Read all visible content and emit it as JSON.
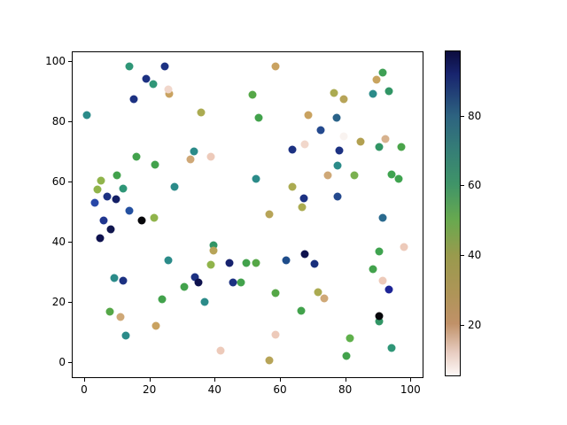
{
  "chart_data": {
    "type": "scatter",
    "title": "",
    "xlabel": "",
    "ylabel": "",
    "grid": false,
    "xlim": [
      -3.8,
      104.0
    ],
    "ylim": [
      -5.3,
      103.2
    ],
    "xticks": [
      0,
      20,
      40,
      60,
      80,
      100
    ],
    "yticks": [
      0,
      20,
      40,
      60,
      80,
      100
    ],
    "marker_diameter_px": 9,
    "point_format": [
      "x",
      "y",
      "color"
    ],
    "points": [
      [
        13.8,
        98.4,
        "#2f9677"
      ],
      [
        24.6,
        98.6,
        "#1c3182"
      ],
      [
        18.8,
        94.4,
        "#1c3182"
      ],
      [
        20.9,
        92.7,
        "#2f9677"
      ],
      [
        26.0,
        89.3,
        "#c9a260"
      ],
      [
        25.8,
        90.7,
        "#f1d7cb"
      ],
      [
        15.0,
        87.4,
        "#1c3182"
      ],
      [
        0.7,
        82.3,
        "#2b8b89"
      ],
      [
        15.8,
        68.4,
        "#42a24c"
      ],
      [
        58.6,
        98.4,
        "#c9a260"
      ],
      [
        51.7,
        89.1,
        "#55a747"
      ],
      [
        35.7,
        83.2,
        "#abab51"
      ],
      [
        53.6,
        81.4,
        "#42a24c"
      ],
      [
        68.7,
        82.1,
        "#c9a260"
      ],
      [
        33.7,
        70.1,
        "#2b8b89"
      ],
      [
        63.8,
        70.8,
        "#1c3182"
      ],
      [
        32.6,
        67.4,
        "#cfa877"
      ],
      [
        38.9,
        68.4,
        "#edcaba"
      ],
      [
        91.8,
        96.3,
        "#3fa055"
      ],
      [
        89.7,
        94.1,
        "#c9a45f"
      ],
      [
        88.7,
        89.4,
        "#2b8b89"
      ],
      [
        93.6,
        90.2,
        "#319565"
      ],
      [
        76.7,
        89.6,
        "#abab51"
      ],
      [
        79.6,
        87.4,
        "#b7a458"
      ],
      [
        77.6,
        81.4,
        "#2a6389"
      ],
      [
        72.7,
        77.1,
        "#24498e"
      ],
      [
        79.6,
        75.2,
        "#f9f3f0"
      ],
      [
        67.7,
        72.4,
        "#f1d7cb"
      ],
      [
        84.9,
        73.2,
        "#b2a050"
      ],
      [
        92.5,
        74.2,
        "#d7b28e"
      ],
      [
        90.5,
        71.6,
        "#319565"
      ],
      [
        97.5,
        71.6,
        "#4aa44a"
      ],
      [
        78.3,
        70.3,
        "#1c3182"
      ],
      [
        21.7,
        65.6,
        "#42a24c"
      ],
      [
        9.8,
        62.0,
        "#42a24c"
      ],
      [
        5.0,
        60.2,
        "#90b44b"
      ],
      [
        3.9,
        57.4,
        "#90b44b"
      ],
      [
        11.8,
        57.6,
        "#2f9677"
      ],
      [
        6.8,
        55.1,
        "#1c3182"
      ],
      [
        9.7,
        54.1,
        "#141f66"
      ],
      [
        3.0,
        52.9,
        "#2847a8"
      ],
      [
        27.6,
        58.2,
        "#2b8b89"
      ],
      [
        13.6,
        50.2,
        "#2450a0"
      ],
      [
        17.6,
        47.1,
        "#06060a"
      ],
      [
        21.4,
        47.9,
        "#90b44b"
      ],
      [
        5.7,
        47.1,
        "#20368f"
      ],
      [
        8.0,
        44.1,
        "#10164e"
      ],
      [
        4.7,
        41.2,
        "#0e124e"
      ],
      [
        25.6,
        33.6,
        "#2b8b89"
      ],
      [
        52.7,
        61.0,
        "#2b8b89"
      ],
      [
        63.8,
        58.3,
        "#abab51"
      ],
      [
        67.5,
        54.5,
        "#1c3182"
      ],
      [
        66.8,
        51.4,
        "#abab51"
      ],
      [
        56.8,
        49.2,
        "#b7a458"
      ],
      [
        39.5,
        38.7,
        "#319565"
      ],
      [
        39.7,
        37.1,
        "#b7a458"
      ],
      [
        38.8,
        32.2,
        "#90b44b"
      ],
      [
        44.6,
        32.9,
        "#16226e"
      ],
      [
        49.7,
        32.9,
        "#42a24c"
      ],
      [
        52.6,
        32.9,
        "#55a747"
      ],
      [
        61.9,
        33.8,
        "#1e4c8a"
      ],
      [
        67.6,
        35.9,
        "#0e124e"
      ],
      [
        70.6,
        32.6,
        "#182f7c"
      ],
      [
        77.8,
        65.4,
        "#2b8b89"
      ],
      [
        74.9,
        62.0,
        "#cfa877"
      ],
      [
        82.9,
        62.0,
        "#7ab04f"
      ],
      [
        94.5,
        62.4,
        "#3fa34f"
      ],
      [
        96.5,
        61.0,
        "#3fa34f"
      ],
      [
        77.8,
        55.1,
        "#24498e"
      ],
      [
        91.8,
        47.9,
        "#2a6a8e"
      ],
      [
        90.7,
        36.8,
        "#3fa34f"
      ],
      [
        98.4,
        38.1,
        "#edcaba"
      ],
      [
        88.7,
        30.9,
        "#42a24c"
      ],
      [
        8.9,
        27.9,
        "#2b8b89"
      ],
      [
        11.8,
        26.9,
        "#1c3182"
      ],
      [
        23.7,
        20.8,
        "#42a24c"
      ],
      [
        7.7,
        16.7,
        "#55a747"
      ],
      [
        10.9,
        14.9,
        "#cfa877"
      ],
      [
        21.9,
        11.8,
        "#c9a260"
      ],
      [
        12.7,
        8.5,
        "#2b8b89"
      ],
      [
        33.9,
        28.1,
        "#1c3182"
      ],
      [
        35.0,
        26.2,
        "#0e124e"
      ],
      [
        30.6,
        24.8,
        "#42a24c"
      ],
      [
        45.7,
        26.2,
        "#1c3182"
      ],
      [
        48.0,
        26.2,
        "#42a24c"
      ],
      [
        36.9,
        19.8,
        "#2b8b89"
      ],
      [
        58.8,
        22.9,
        "#55a747"
      ],
      [
        66.5,
        16.8,
        "#42a24c"
      ],
      [
        58.8,
        8.8,
        "#edcaba"
      ],
      [
        41.9,
        3.6,
        "#edcaba"
      ],
      [
        56.7,
        0.3,
        "#b7a458"
      ],
      [
        91.8,
        26.9,
        "#edcaba"
      ],
      [
        93.6,
        23.9,
        "#1d2496"
      ],
      [
        71.9,
        23.2,
        "#abab51"
      ],
      [
        73.7,
        21.0,
        "#cfa877"
      ],
      [
        90.7,
        13.4,
        "#319565"
      ],
      [
        90.7,
        15.1,
        "#06060a"
      ],
      [
        81.7,
        7.6,
        "#5fb04b"
      ],
      [
        94.5,
        4.6,
        "#2f9677"
      ],
      [
        80.5,
        1.7,
        "#42a24c"
      ]
    ],
    "colorbar": {
      "range": [
        5.3,
        98.7
      ],
      "ticks": [
        20,
        40,
        60,
        80
      ],
      "gradient_top_to_bottom": [
        {
          "pos": 0,
          "color": "#0c0c3e"
        },
        {
          "pos": 7,
          "color": "#18246e"
        },
        {
          "pos": 20,
          "color": "#2d6380"
        },
        {
          "pos": 30,
          "color": "#357d77"
        },
        {
          "pos": 41,
          "color": "#3f9468"
        },
        {
          "pos": 52,
          "color": "#68a94f"
        },
        {
          "pos": 63,
          "color": "#999a4d"
        },
        {
          "pos": 74,
          "color": "#ad9557"
        },
        {
          "pos": 84,
          "color": "#c09168"
        },
        {
          "pos": 93,
          "color": "#e8cdc2"
        },
        {
          "pos": 100,
          "color": "#fdf8f6"
        }
      ]
    }
  }
}
